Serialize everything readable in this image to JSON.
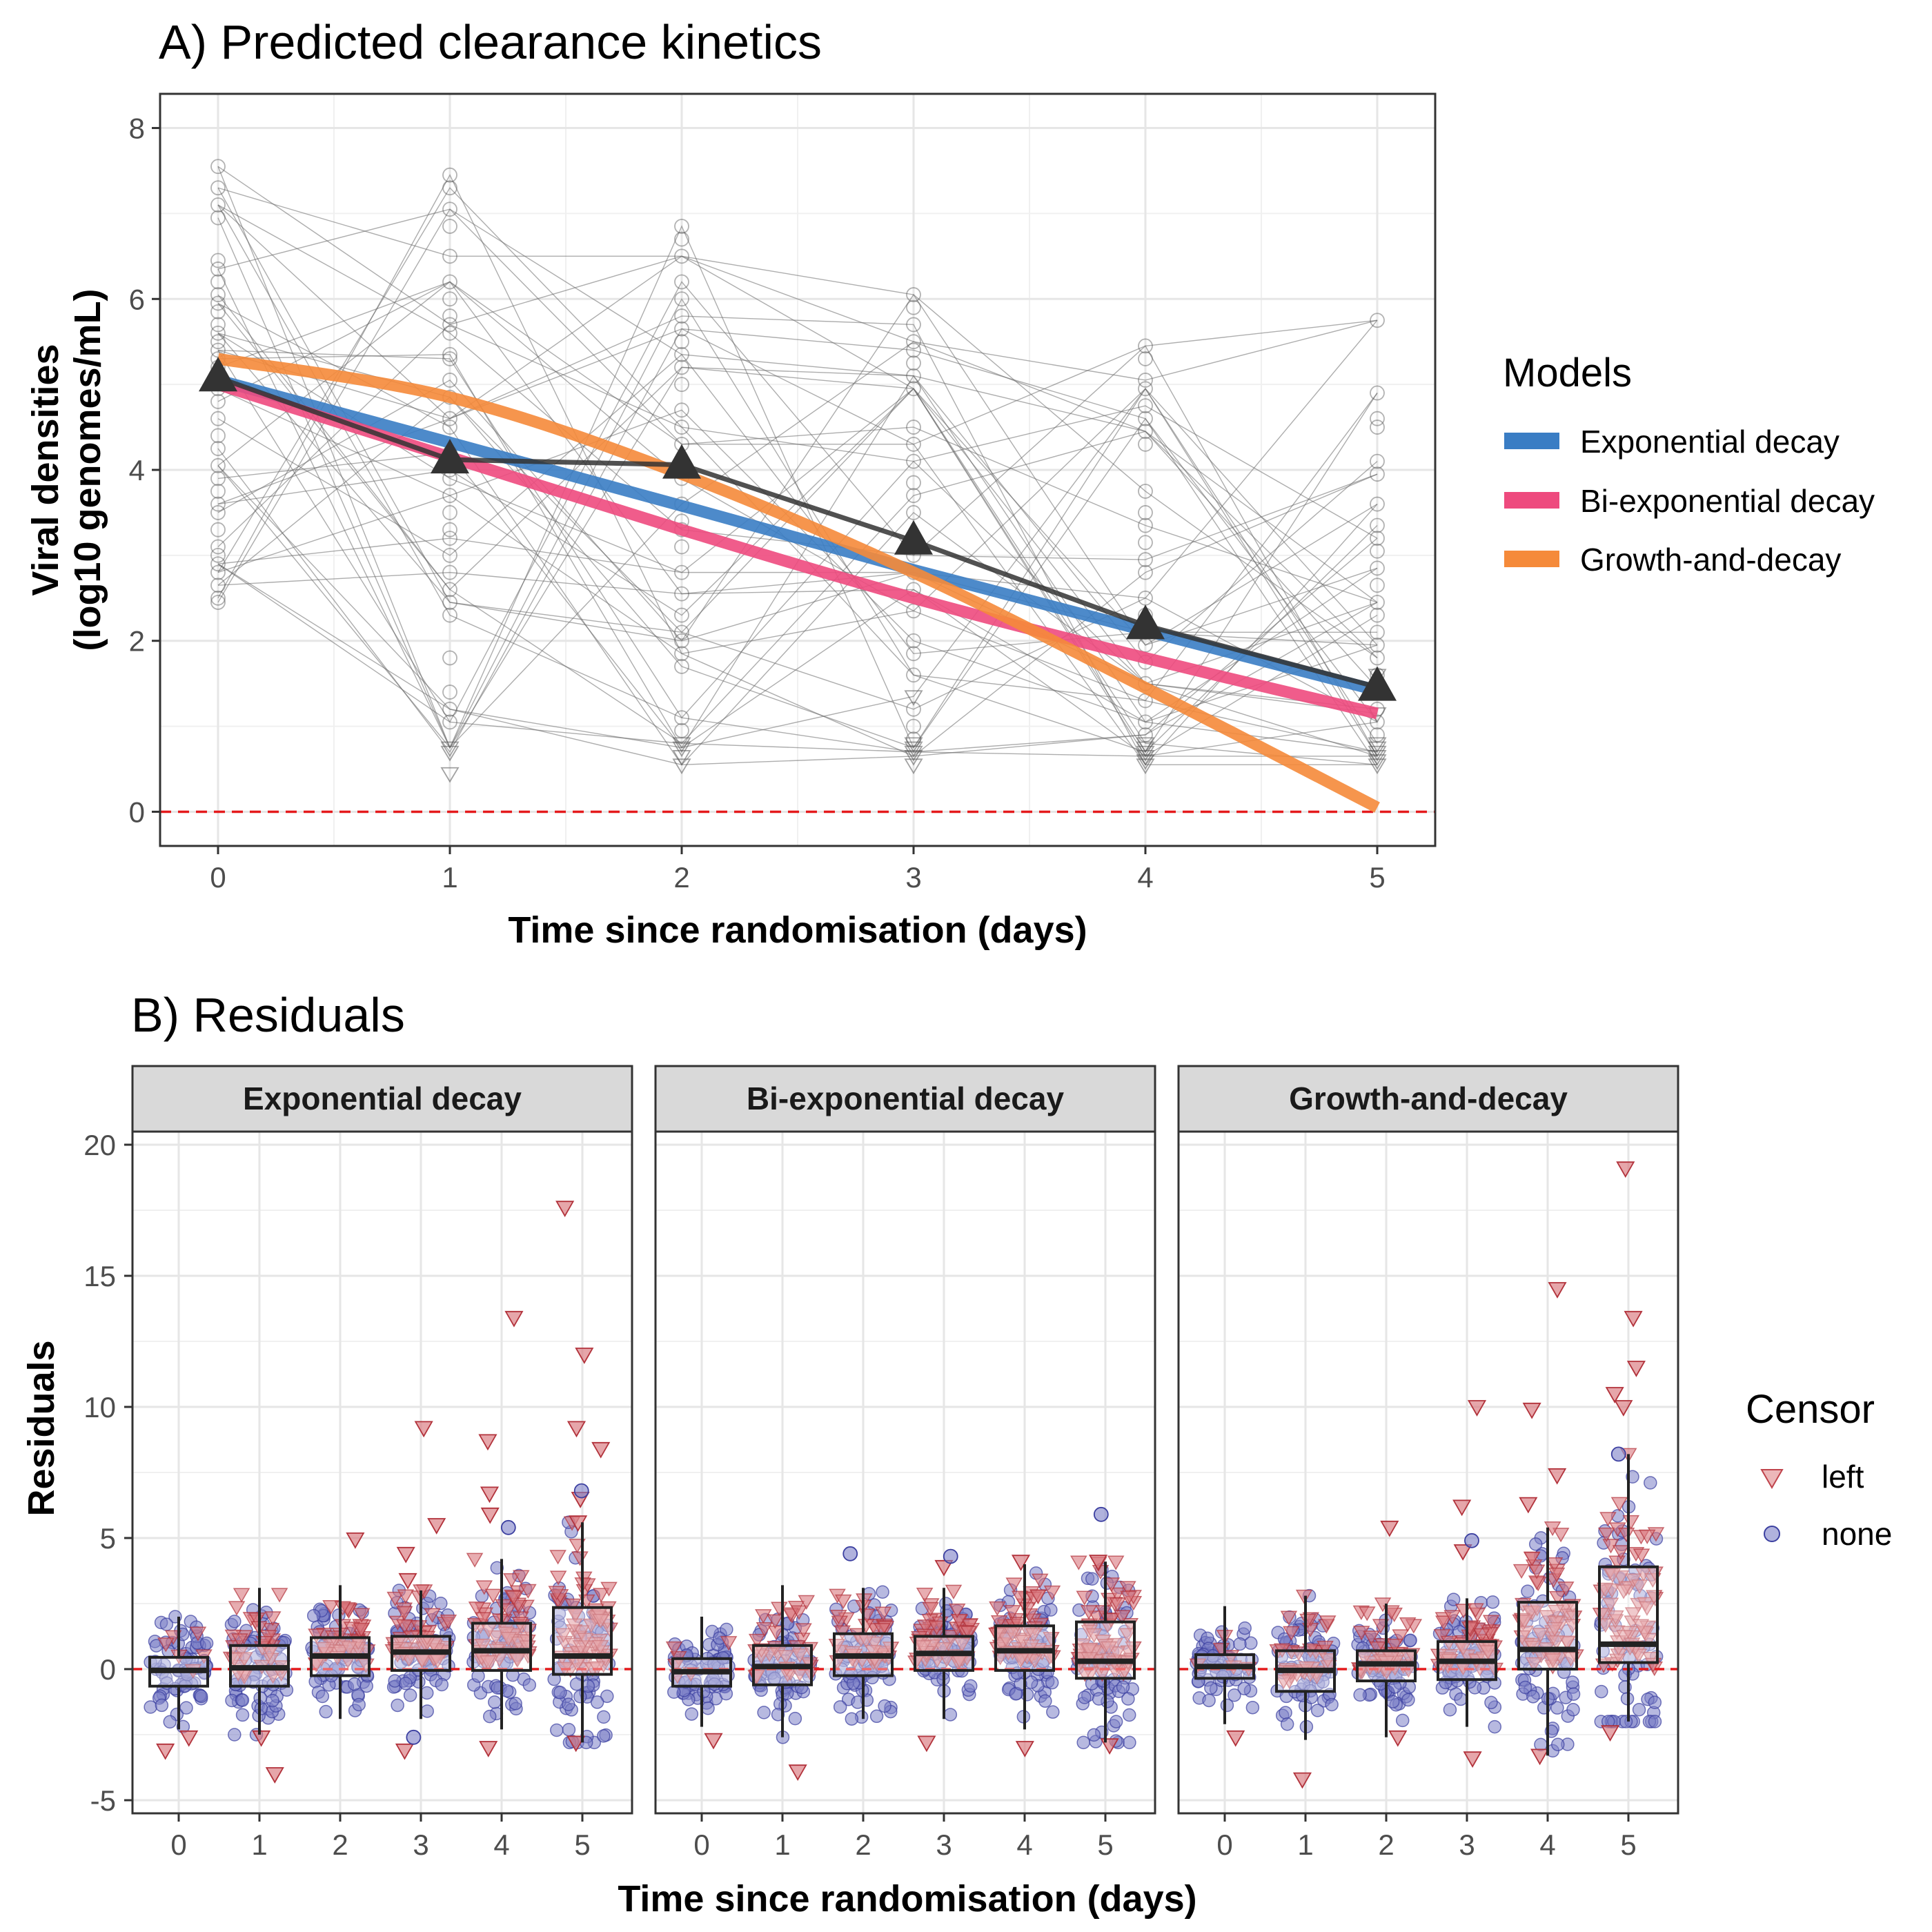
{
  "chart_data": [
    {
      "type": "line",
      "title": "A) Predicted clearance kinetics",
      "xlabel": "Time since randomisation (days)",
      "ylabel": "Viral densities\n(log10 genomes/mL)",
      "ylabel_lines": [
        "Viral densities",
        "(log10 genomes/mL)"
      ],
      "xlim": [
        -0.25,
        5.25
      ],
      "ylim": [
        -0.4,
        8.4
      ],
      "x_ticks": [
        0,
        1,
        2,
        3,
        4,
        5
      ],
      "y_ticks": [
        0,
        2,
        4,
        6,
        8
      ],
      "grid": true,
      "reference_line": {
        "y": 0,
        "color": "#e41a1c",
        "style": "dashed"
      },
      "legend": {
        "title": "Models",
        "position": "right",
        "entries": [
          {
            "label": "Exponential decay",
            "color": "#3a7dc4"
          },
          {
            "label": "Bi-exponential decay",
            "color": "#ee4a7e"
          },
          {
            "label": "Growth-and-decay",
            "color": "#f58a3a"
          }
        ]
      },
      "x": [
        0,
        1,
        2,
        3,
        4,
        5
      ],
      "series": [
        {
          "name": "Exponential decay",
          "color": "#3a7dc4",
          "values": [
            5.05,
            4.32,
            3.58,
            2.83,
            2.12,
            1.42
          ]
        },
        {
          "name": "Bi-exponential decay",
          "color": "#ee4a7e",
          "values": [
            5.0,
            4.15,
            3.3,
            2.5,
            1.8,
            1.15
          ]
        },
        {
          "name": "Growth-and-decay",
          "color": "#f58a3a",
          "values": [
            5.3,
            4.85,
            3.95,
            2.8,
            1.45,
            0.05
          ]
        }
      ],
      "observed_mean": {
        "color": "#333333",
        "x": [
          0,
          1,
          2,
          3,
          4,
          5
        ],
        "values": [
          5.08,
          4.12,
          4.06,
          3.17,
          2.18,
          1.46
        ]
      },
      "individual_observations": {
        "color": "#7f7f7f",
        "values_by_day": [
          [
            7.55,
            7.3,
            7.1,
            6.95,
            6.45,
            6.35,
            6.2,
            6.05,
            5.95,
            5.85,
            5.7,
            5.6,
            5.5,
            5.4,
            5.3,
            5.2,
            5.1,
            4.95,
            4.8,
            4.6,
            4.4,
            4.25,
            4.05,
            3.9,
            3.75,
            3.6,
            3.5,
            3.3,
            3.1,
            3.0,
            2.9,
            2.8,
            2.65,
            2.5,
            2.45
          ],
          [
            7.45,
            7.3,
            7.05,
            6.85,
            6.5,
            6.2,
            6.0,
            5.8,
            5.7,
            5.6,
            5.35,
            5.3,
            5.05,
            4.85,
            4.6,
            4.5,
            4.2,
            4.0,
            3.9,
            3.7,
            3.5,
            3.3,
            3.2,
            3.0,
            2.8,
            2.6,
            2.45,
            2.3,
            1.8,
            1.4,
            1.2,
            1.05
          ],
          [
            6.85,
            6.7,
            6.5,
            6.2,
            6.0,
            5.8,
            5.65,
            5.5,
            5.35,
            5.2,
            5.0,
            4.7,
            4.5,
            4.3,
            4.1,
            3.9,
            3.6,
            3.4,
            3.3,
            3.1,
            2.8,
            2.55,
            2.3,
            2.1,
            2.0,
            1.85,
            1.7,
            1.1,
            0.95
          ],
          [
            6.05,
            5.9,
            5.7,
            5.5,
            5.4,
            5.25,
            5.1,
            4.95,
            4.5,
            4.3,
            4.1,
            3.85,
            3.7,
            3.5,
            3.2,
            3.0,
            2.8,
            2.6,
            2.35,
            2.0,
            1.85,
            1.6,
            1.2,
            1.0,
            0.85
          ],
          [
            5.45,
            5.3,
            5.05,
            4.95,
            4.75,
            4.6,
            4.45,
            4.3,
            3.75,
            3.5,
            3.35,
            3.15,
            2.95,
            2.8,
            2.5,
            2.3,
            2.1,
            1.95,
            1.75,
            1.5,
            1.3,
            1.05,
            0.9
          ],
          [
            5.75,
            4.9,
            4.6,
            4.5,
            4.1,
            3.95,
            3.6,
            3.35,
            3.2,
            3.05,
            2.85,
            2.65,
            2.45,
            2.3,
            2.1,
            1.95,
            1.8,
            1.6,
            1.45,
            1.2,
            1.05,
            0.9
          ]
        ],
        "censored_values_by_day": [
          [],
          [
            0.75,
            0.7,
            0.45
          ],
          [
            0.8,
            0.75,
            0.65,
            0.55
          ],
          [
            1.35,
            0.8,
            0.75,
            0.7,
            0.65,
            0.55
          ],
          [
            0.8,
            0.75,
            0.7,
            0.65,
            0.6,
            0.55
          ],
          [
            1.6,
            1.15,
            0.8,
            0.75,
            0.7,
            0.65,
            0.6,
            0.55
          ]
        ]
      }
    },
    {
      "type": "box",
      "title": "B) Residuals",
      "xlabel": "Time since randomisation (days)",
      "ylabel": "Residuals",
      "ylim": [
        -5.5,
        20.5
      ],
      "y_ticks": [
        -5,
        0,
        5,
        10,
        15,
        20
      ],
      "y_tick_labels": [
        "-5",
        "0",
        "5",
        "10",
        "15",
        "20"
      ],
      "x_ticks": [
        0,
        1,
        2,
        3,
        4,
        5
      ],
      "grid": true,
      "reference_line": {
        "y": 0,
        "color": "#e41a1c",
        "style": "dashed"
      },
      "legend": {
        "title": "Censor",
        "position": "right",
        "entries": [
          {
            "label": "left",
            "color": "#e0878b",
            "shape": "triangle-down"
          },
          {
            "label": "none",
            "color": "#7b7fc7",
            "shape": "circle"
          }
        ]
      },
      "facets": [
        {
          "name": "Exponential decay",
          "boxes": [
            {
              "day": 0,
              "q1": -0.65,
              "median": -0.05,
              "q3": 0.45,
              "whisker_low": -2.3,
              "whisker_high": 2.0
            },
            {
              "day": 1,
              "q1": -0.65,
              "median": 0.05,
              "q3": 0.9,
              "whisker_low": -2.5,
              "whisker_high": 3.1
            },
            {
              "day": 2,
              "q1": -0.25,
              "median": 0.5,
              "q3": 1.2,
              "whisker_low": -1.9,
              "whisker_high": 3.2
            },
            {
              "day": 3,
              "q1": -0.05,
              "median": 0.65,
              "q3": 1.25,
              "whisker_low": -1.9,
              "whisker_high": 3.0
            },
            {
              "day": 4,
              "q1": -0.05,
              "median": 0.7,
              "q3": 1.75,
              "whisker_low": -2.3,
              "whisker_high": 4.2
            },
            {
              "day": 5,
              "q1": -0.2,
              "median": 0.5,
              "q3": 2.35,
              "whisker_low": -2.8,
              "whisker_high": 5.6
            }
          ],
          "censored_outliers": [
            {
              "day": 0,
              "values": [
                -2.6,
                -3.1
              ]
            },
            {
              "day": 1,
              "values": [
                -4.0,
                -2.6
              ]
            },
            {
              "day": 2,
              "values": [
                4.95
              ]
            },
            {
              "day": 3,
              "values": [
                9.2,
                5.5,
                4.4,
                3.4,
                -3.1
              ]
            },
            {
              "day": 4,
              "values": [
                13.4,
                8.7,
                6.7,
                5.9,
                -3.0
              ]
            },
            {
              "day": 5,
              "values": [
                17.6,
                12.0,
                9.2,
                8.4,
                6.5,
                5.6,
                -2.8
              ]
            }
          ],
          "uncensored_outliers": [
            {
              "day": 3,
              "values": [
                -2.6
              ]
            },
            {
              "day": 4,
              "values": [
                5.4
              ]
            },
            {
              "day": 5,
              "values": [
                6.8
              ]
            }
          ]
        },
        {
          "name": "Bi-exponential decay",
          "boxes": [
            {
              "day": 0,
              "q1": -0.65,
              "median": -0.1,
              "q3": 0.4,
              "whisker_low": -2.2,
              "whisker_high": 2.0
            },
            {
              "day": 1,
              "q1": -0.6,
              "median": 0.1,
              "q3": 0.9,
              "whisker_low": -2.6,
              "whisker_high": 3.2
            },
            {
              "day": 2,
              "q1": -0.25,
              "median": 0.5,
              "q3": 1.35,
              "whisker_low": -1.9,
              "whisker_high": 3.1
            },
            {
              "day": 3,
              "q1": -0.05,
              "median": 0.6,
              "q3": 1.25,
              "whisker_low": -1.9,
              "whisker_high": 3.1
            },
            {
              "day": 4,
              "q1": -0.05,
              "median": 0.7,
              "q3": 1.65,
              "whisker_low": -2.3,
              "whisker_high": 4.0
            },
            {
              "day": 5,
              "q1": -0.35,
              "median": 0.3,
              "q3": 1.8,
              "whisker_low": -2.8,
              "whisker_high": 4.1
            }
          ],
          "censored_outliers": [
            {
              "day": 0,
              "values": [
                -2.7
              ]
            },
            {
              "day": 1,
              "values": [
                -3.9
              ]
            },
            {
              "day": 3,
              "values": [
                -2.8,
                3.9
              ]
            },
            {
              "day": 4,
              "values": [
                4.1,
                -3.0
              ]
            },
            {
              "day": 5,
              "values": [
                4.1,
                -2.9
              ]
            }
          ],
          "uncensored_outliers": [
            {
              "day": 2,
              "values": [
                4.4
              ]
            },
            {
              "day": 3,
              "values": [
                4.3
              ]
            },
            {
              "day": 5,
              "values": [
                5.9
              ]
            }
          ]
        },
        {
          "name": "Growth-and-decay",
          "boxes": [
            {
              "day": 0,
              "q1": -0.35,
              "median": 0.1,
              "q3": 0.55,
              "whisker_low": -2.1,
              "whisker_high": 2.4
            },
            {
              "day": 1,
              "q1": -0.85,
              "median": -0.05,
              "q3": 0.7,
              "whisker_low": -2.7,
              "whisker_high": 2.8
            },
            {
              "day": 2,
              "q1": -0.45,
              "median": 0.2,
              "q3": 0.7,
              "whisker_low": -2.6,
              "whisker_high": 2.5
            },
            {
              "day": 3,
              "q1": -0.4,
              "median": 0.3,
              "q3": 1.05,
              "whisker_low": -2.2,
              "whisker_high": 2.7
            },
            {
              "day": 4,
              "q1": 0.0,
              "median": 0.75,
              "q3": 2.55,
              "whisker_low": -3.3,
              "whisker_high": 5.4
            },
            {
              "day": 5,
              "q1": 0.25,
              "median": 0.95,
              "q3": 3.9,
              "whisker_low": -2.0,
              "whisker_high": 8.2
            }
          ],
          "censored_outliers": [
            {
              "day": 0,
              "values": [
                -2.6
              ]
            },
            {
              "day": 1,
              "values": [
                -4.2
              ]
            },
            {
              "day": 2,
              "values": [
                5.4,
                -2.6
              ]
            },
            {
              "day": 3,
              "values": [
                10.0,
                6.2,
                4.5,
                -3.4
              ]
            },
            {
              "day": 4,
              "values": [
                14.5,
                9.9,
                7.4,
                6.3,
                -3.3
              ]
            },
            {
              "day": 5,
              "values": [
                19.1,
                13.4,
                11.5,
                10.5,
                10.0,
                -2.4
              ]
            }
          ],
          "uncensored_outliers": [
            {
              "day": 3,
              "values": [
                4.9
              ]
            },
            {
              "day": 5,
              "values": [
                8.2
              ]
            }
          ]
        }
      ]
    }
  ]
}
